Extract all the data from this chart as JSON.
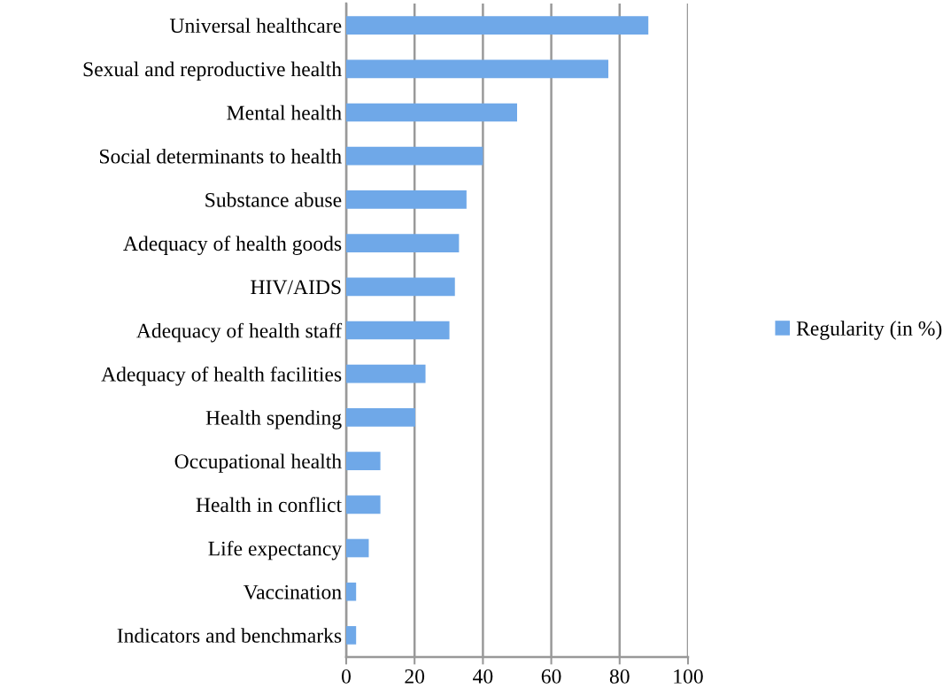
{
  "chart_data": {
    "type": "bar",
    "orientation": "horizontal",
    "categories": [
      "Universal healthcare",
      "Sexual and reproductive health",
      "Mental health",
      "Social determinants to health",
      "Substance abuse",
      "Adequacy of health goods",
      "HIV/AIDS",
      "Adequacy of health staff",
      "Adequacy of health facilities",
      "Health spending",
      "Occupational health",
      "Health in conflict",
      "Life expectancy",
      "Vaccination",
      "Indicators and benchmarks"
    ],
    "series": [
      {
        "name": "Regularity (in %)",
        "color": "#6fa8e8",
        "values": [
          88.4,
          76.7,
          50,
          40,
          35.2,
          33,
          31.8,
          30.2,
          23.2,
          20.2,
          10,
          10,
          6.6,
          2.9,
          2.9
        ]
      }
    ],
    "xlim": [
      0,
      100
    ],
    "xticks": [
      0,
      20,
      40,
      60,
      80,
      100
    ],
    "grid": "x",
    "legend": "right"
  }
}
